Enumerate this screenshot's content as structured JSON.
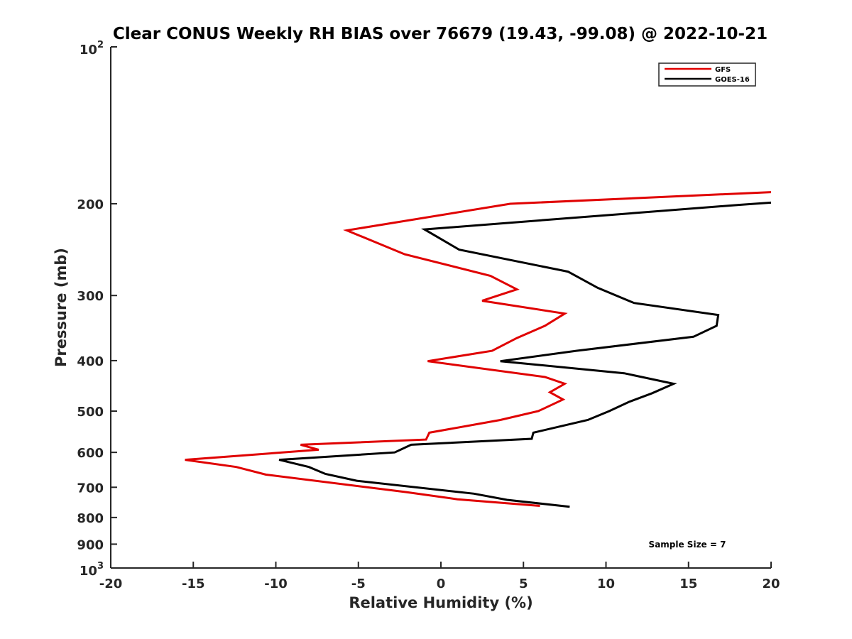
{
  "chart_data": {
    "type": "line",
    "title": "Clear CONUS Weekly RH BIAS over 76679 (19.43, -99.08) @ 2022-10-21",
    "xlabel": "Relative Humidity (%)",
    "ylabel": "Pressure (mb)",
    "xlim": [
      -20,
      20
    ],
    "ylim": [
      100,
      1000
    ],
    "y_scale": "log",
    "y_reversed": true,
    "grid": false,
    "legend_position": "top-right",
    "x_ticks": [
      "-20",
      "-15",
      "-10",
      "-5",
      "0",
      "5",
      "10",
      "15",
      "20"
    ],
    "y_ticks": [
      {
        "value": 100,
        "base": "10",
        "exp": "2"
      },
      {
        "value": 200,
        "label": "200"
      },
      {
        "value": 300,
        "label": "300"
      },
      {
        "value": 400,
        "label": "400"
      },
      {
        "value": 500,
        "label": "500"
      },
      {
        "value": 600,
        "label": "600"
      },
      {
        "value": 700,
        "label": "700"
      },
      {
        "value": 800,
        "label": "800"
      },
      {
        "value": 900,
        "label": "900"
      },
      {
        "value": 1000,
        "base": "10",
        "exp": "3"
      }
    ],
    "series": [
      {
        "name": "GFS",
        "color": "#e00000",
        "points": [
          [
            20.0,
            190
          ],
          [
            4.2,
            200
          ],
          [
            -5.7,
            225
          ],
          [
            -2.2,
            250
          ],
          [
            3.0,
            275
          ],
          [
            4.6,
            292
          ],
          [
            2.5,
            307
          ],
          [
            7.5,
            325
          ],
          [
            6.3,
            343
          ],
          [
            4.6,
            362
          ],
          [
            3.1,
            383
          ],
          [
            -0.8,
            401
          ],
          [
            6.3,
            430
          ],
          [
            7.5,
            443
          ],
          [
            6.6,
            460
          ],
          [
            7.4,
            475
          ],
          [
            5.9,
            500
          ],
          [
            3.6,
            520
          ],
          [
            -0.7,
            550
          ],
          [
            -0.9,
            567
          ],
          [
            -8.5,
            580
          ],
          [
            -7.4,
            593
          ],
          [
            -15.5,
            620
          ],
          [
            -12.4,
            640
          ],
          [
            -10.6,
            662
          ],
          [
            -2.1,
            715
          ],
          [
            1.0,
            738
          ],
          [
            6.0,
            760
          ]
        ]
      },
      {
        "name": "GOES-16",
        "color": "#000000",
        "points": [
          [
            20.0,
            199
          ],
          [
            18.1,
            201
          ],
          [
            -1.0,
            224
          ],
          [
            1.1,
            245
          ],
          [
            7.7,
            270
          ],
          [
            9.5,
            290
          ],
          [
            11.7,
            310
          ],
          [
            16.8,
            327
          ],
          [
            16.7,
            343
          ],
          [
            15.3,
            360
          ],
          [
            8.2,
            383
          ],
          [
            3.6,
            401
          ],
          [
            11.1,
            423
          ],
          [
            14.1,
            443
          ],
          [
            12.8,
            462
          ],
          [
            11.4,
            480
          ],
          [
            10.2,
            500
          ],
          [
            8.9,
            520
          ],
          [
            5.6,
            550
          ],
          [
            5.5,
            565
          ],
          [
            -1.8,
            580
          ],
          [
            -2.8,
            600
          ],
          [
            -9.8,
            620
          ],
          [
            -8.0,
            640
          ],
          [
            -7.0,
            660
          ],
          [
            -5.1,
            680
          ],
          [
            2.0,
            720
          ],
          [
            4.0,
            740
          ],
          [
            7.8,
            763
          ]
        ]
      }
    ],
    "annotation": "Sample Size = 7"
  }
}
